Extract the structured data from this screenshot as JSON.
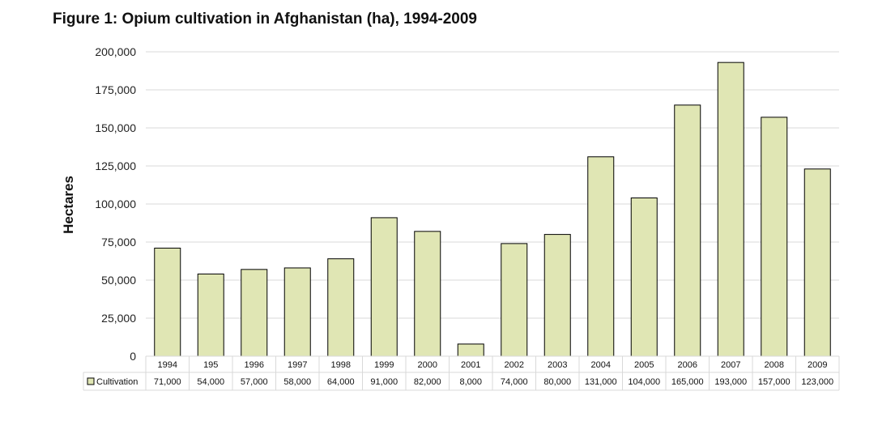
{
  "chart_data": {
    "type": "bar",
    "title": "Figure 1: Opium cultivation in Afghanistan (ha), 1994-2009",
    "ylabel": "Hectares",
    "xlabel": "",
    "categories": [
      "1994",
      "195",
      "1996",
      "1997",
      "1998",
      "1999",
      "2000",
      "2001",
      "2002",
      "2003",
      "2004",
      "2005",
      "2006",
      "2007",
      "2008",
      "2009"
    ],
    "series": [
      {
        "name": "Cultivation",
        "values": [
          71000,
          54000,
          57000,
          58000,
          64000,
          91000,
          82000,
          8000,
          74000,
          80000,
          131000,
          104000,
          165000,
          193000,
          157000,
          123000
        ],
        "value_labels": [
          "71,000",
          "54,000",
          "57,000",
          "58,000",
          "64,000",
          "91,000",
          "82,000",
          "8,000",
          "74,000",
          "80,000",
          "131,000",
          "104,000",
          "165,000",
          "193,000",
          "157,000",
          "123,000"
        ],
        "color": "#e0e6b4"
      }
    ],
    "ylim": [
      0,
      200000
    ],
    "yticks": [
      0,
      25000,
      50000,
      75000,
      100000,
      125000,
      150000,
      175000,
      200000
    ],
    "ytick_labels": [
      "0",
      "25,000",
      "50,000",
      "75,000",
      "100,000",
      "125,000",
      "150,000",
      "175,000",
      "200,000"
    ],
    "grid": true,
    "legend": "data-table-left",
    "data_table": true,
    "bar_outline_color": "#000000",
    "grid_color": "#d9d9d9"
  }
}
